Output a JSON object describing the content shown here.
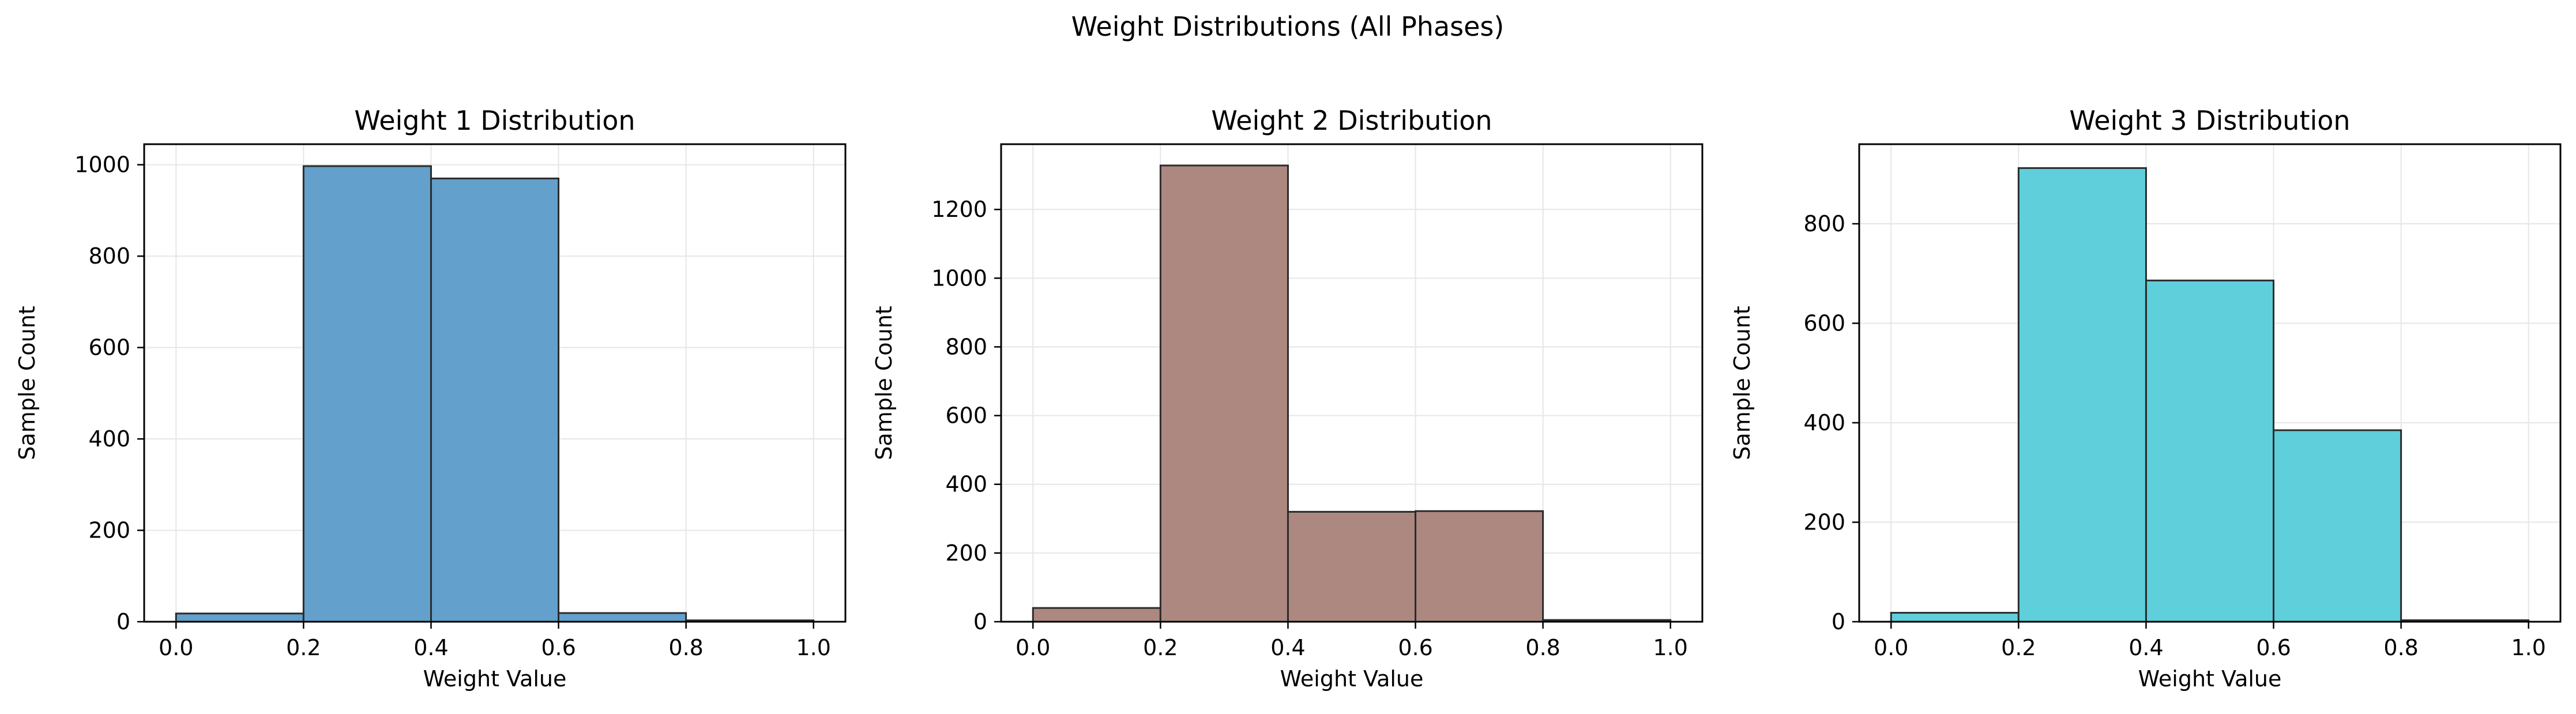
{
  "suptitle": "Weight Distributions (All Phases)",
  "chart_data": [
    {
      "type": "bar",
      "title": "Weight 1 Distribution",
      "xlabel": "Weight Value",
      "ylabel": "Sample Count",
      "bin_edges": [
        0.0,
        0.2,
        0.4,
        0.6,
        0.8,
        1.0
      ],
      "values": [
        18,
        997,
        970,
        19,
        3
      ],
      "xlim": [
        -0.05,
        1.05
      ],
      "ylim": [
        0,
        1045
      ],
      "xticks": [
        "0.0",
        "0.2",
        "0.4",
        "0.6",
        "0.8",
        "1.0"
      ],
      "yticks": [
        0,
        200,
        400,
        600,
        800,
        1000
      ],
      "color": "#63a0cb",
      "grid": true
    },
    {
      "type": "bar",
      "title": "Weight 2 Distribution",
      "xlabel": "Weight Value",
      "ylabel": "Sample Count",
      "bin_edges": [
        0.0,
        0.2,
        0.4,
        0.6,
        0.8,
        1.0
      ],
      "values": [
        40,
        1328,
        320,
        322,
        5
      ],
      "xlim": [
        -0.05,
        1.05
      ],
      "ylim": [
        0,
        1390
      ],
      "xticks": [
        "0.0",
        "0.2",
        "0.4",
        "0.6",
        "0.8",
        "1.0"
      ],
      "yticks": [
        0,
        200,
        400,
        600,
        800,
        1000,
        1200
      ],
      "color": "#ad8880",
      "grid": true
    },
    {
      "type": "bar",
      "title": "Weight 3 Distribution",
      "xlabel": "Weight Value",
      "ylabel": "Sample Count",
      "bin_edges": [
        0.0,
        0.2,
        0.4,
        0.6,
        0.8,
        1.0
      ],
      "values": [
        18,
        912,
        686,
        385,
        3
      ],
      "xlim": [
        -0.05,
        1.05
      ],
      "ylim": [
        0,
        960
      ],
      "xticks": [
        "0.0",
        "0.2",
        "0.4",
        "0.6",
        "0.8",
        "1.0"
      ],
      "yticks": [
        0,
        200,
        400,
        600,
        800
      ],
      "color": "#5ecfdb",
      "grid": true
    }
  ]
}
